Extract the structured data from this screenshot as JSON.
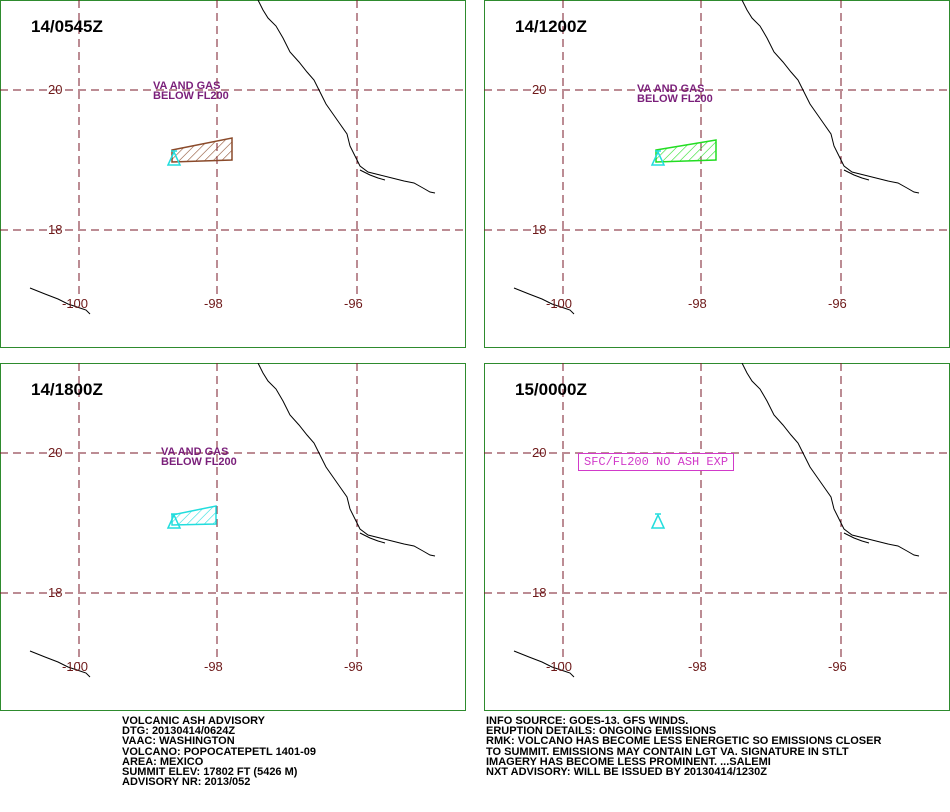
{
  "panels": [
    {
      "time": "14/0545Z",
      "note_line1": "VA AND GAS",
      "note_line2": "BELOW FL200",
      "ash_color": "#8a4a2a"
    },
    {
      "time": "14/1200Z",
      "note_line1": "VA AND GAS",
      "note_line2": "BELOW FL200",
      "ash_color": "#22dd22"
    },
    {
      "time": "14/1800Z",
      "note_line1": "VA AND GAS",
      "note_line2": "BELOW FL200",
      "ash_color": "#22dddd"
    },
    {
      "time": "15/0000Z",
      "no_ash_text": "SFC/FL200 NO ASH EXP"
    }
  ],
  "grid": {
    "lat_labels": [
      "20",
      "18"
    ],
    "lon_labels": [
      "-100",
      "-98",
      "-96"
    ]
  },
  "colors": {
    "grid_line": "#7a1a2a",
    "coastline": "#000000",
    "volcano": "#22dddd",
    "panel_border": "#2e8b2e",
    "note_text": "#7a1f7a",
    "no_ash_box": "#d13ac9"
  },
  "advisory_left": {
    "line1": "VOLCANIC ASH ADVISORY",
    "line2": "DTG: 20130414/0624Z",
    "line3": "VAAC: WASHINGTON",
    "line4": "VOLCANO: POPOCATEPETL 1401-09",
    "line5": "AREA: MEXICO",
    "line6": "SUMMIT ELEV: 17802 FT (5426 M)",
    "line7": "ADVISORY NR: 2013/052"
  },
  "advisory_right": {
    "line1": "INFO SOURCE: GOES-13. GFS WINDS.",
    "line2": "ERUPTION DETAILS: ONGOING EMISSIONS",
    "line3": "RMK: VOLCANO HAS BECOME LESS ENERGETIC SO EMISSIONS CLOSER",
    "line4": "TO SUMMIT. EMISSIONS MAY CONTAIN LGT VA. SIGNATURE IN STLT",
    "line5": "IMAGERY HAS BECOME LESS PROMINENT. ...SALEMI",
    "line6": "NXT ADVISORY: WILL BE ISSUED BY 20130414/1230Z"
  }
}
